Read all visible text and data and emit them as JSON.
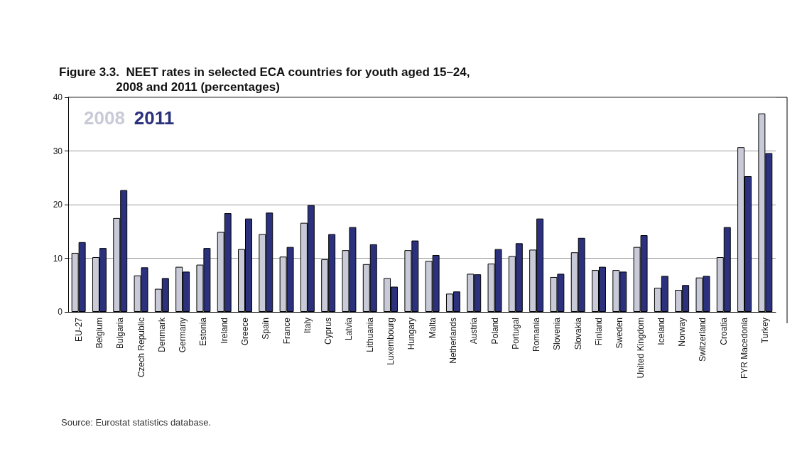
{
  "chart_data": {
    "type": "bar",
    "title": "Figure 3.3.  NEET rates in selected ECA countries for youth aged 15–24,\n                 2008 and 2011 (percentages)",
    "categories": [
      "EU-27",
      "Belgium",
      "Bulgaria",
      "Czech Republic",
      "Denmark",
      "Germany",
      "Estonia",
      "Ireland",
      "Greece",
      "Spain",
      "France",
      "Italy",
      "Cyprus",
      "Latvia",
      "Lithuania",
      "Luxembourg",
      "Hungary",
      "Malta",
      "Netherlands",
      "Austria",
      "Poland",
      "Portugal",
      "Romania",
      "Slovenia",
      "Slovakia",
      "Finland",
      "Sweden",
      "United Kingdom",
      "Iceland",
      "Norway",
      "Switzerland",
      "Croatia",
      "FYR Macedonia",
      "Turkey"
    ],
    "series": [
      {
        "name": "2008",
        "color": "#c9cad8",
        "values": [
          11.0,
          10.2,
          17.5,
          6.8,
          4.3,
          8.4,
          8.8,
          14.9,
          11.7,
          14.5,
          10.3,
          16.6,
          9.8,
          11.5,
          8.9,
          6.3,
          11.5,
          9.5,
          3.4,
          7.1,
          9.0,
          10.4,
          11.6,
          6.5,
          11.1,
          7.8,
          7.8,
          12.1,
          4.5,
          4.1,
          6.4,
          10.2,
          30.7,
          37.0
        ]
      },
      {
        "name": "2011",
        "color": "#2b317c",
        "values": [
          13.0,
          11.9,
          22.7,
          8.3,
          6.3,
          7.5,
          11.9,
          18.4,
          17.4,
          18.5,
          12.1,
          19.9,
          14.5,
          15.8,
          12.6,
          4.7,
          13.3,
          10.6,
          3.8,
          7.0,
          11.7,
          12.8,
          17.4,
          7.1,
          13.8,
          8.4,
          7.5,
          14.3,
          6.7,
          5.0,
          6.7,
          15.8,
          25.3,
          29.6
        ]
      }
    ],
    "ylim": [
      0,
      40
    ],
    "yticks": [
      0,
      10,
      20,
      30,
      40
    ],
    "grid": "y",
    "legend": "top left",
    "annotations": [
      "Source: Eurostat statistics database."
    ]
  }
}
